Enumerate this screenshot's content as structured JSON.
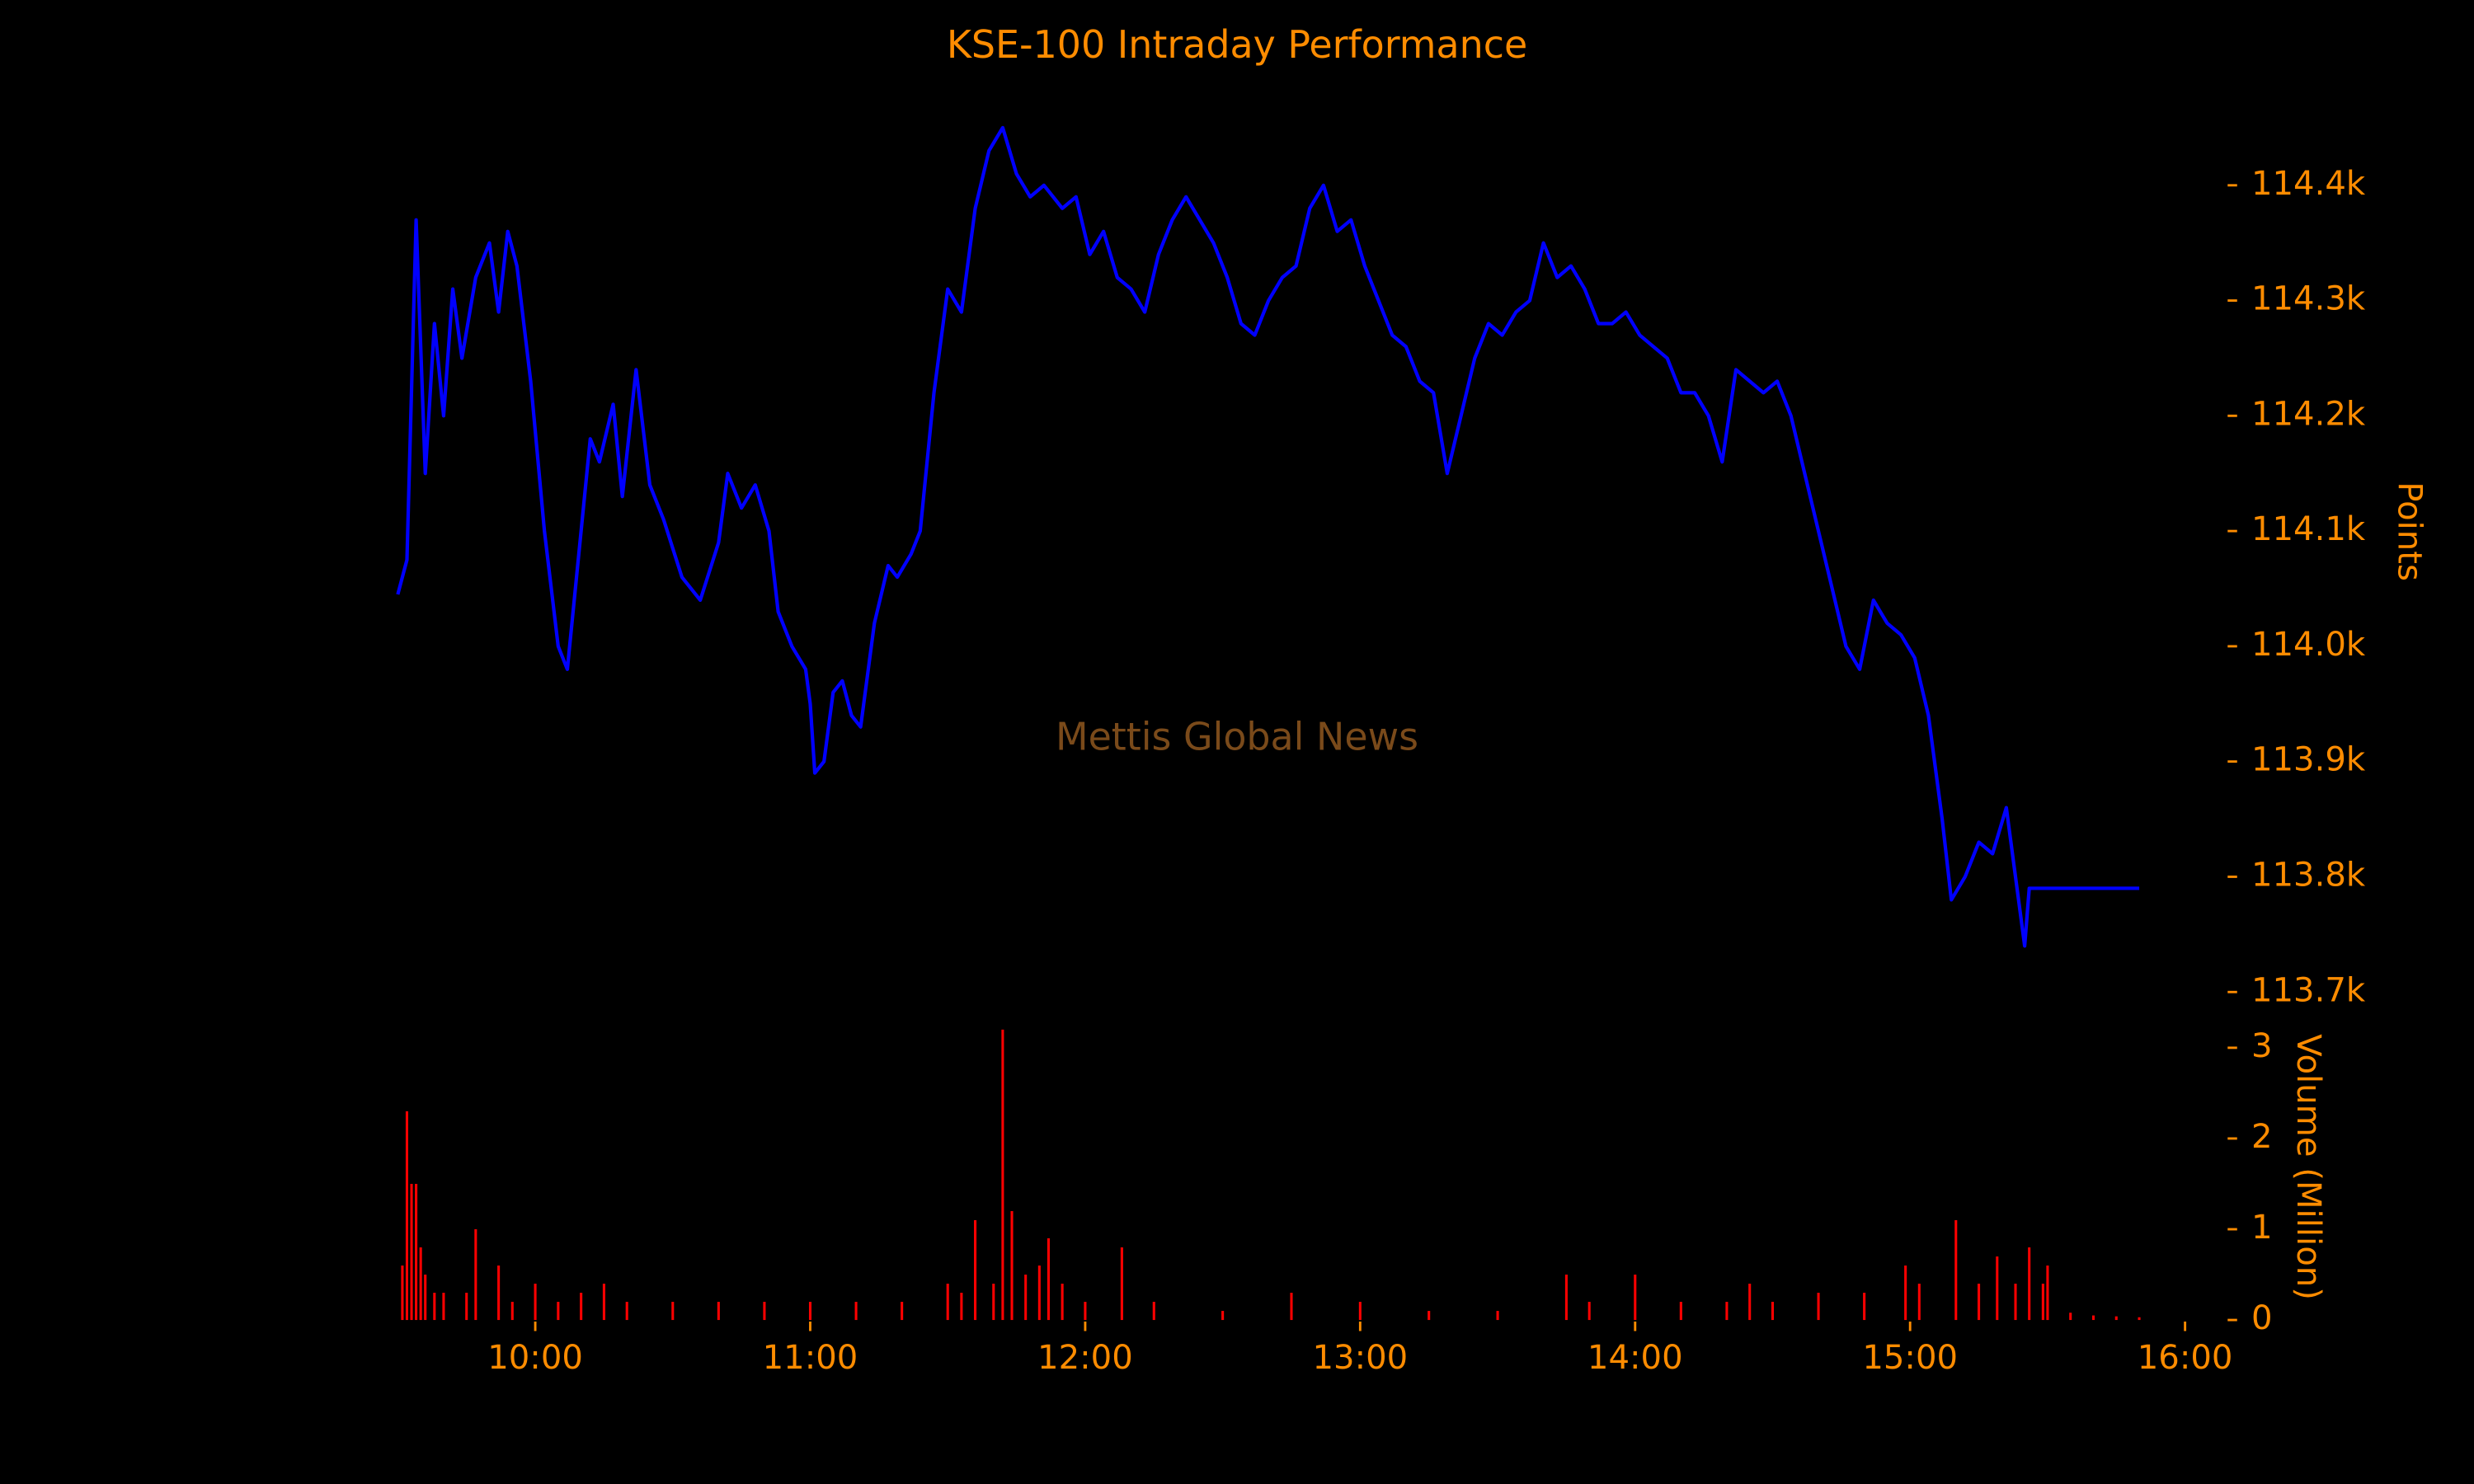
{
  "chart_data": [
    {
      "type": "line",
      "title": "KSE-100 Intraday Performance",
      "ylabel": "Points",
      "annotation": "Mettis Global News",
      "xlim": [
        "09:30",
        "16:00"
      ],
      "ylim": [
        113685,
        114465
      ],
      "yticks": [
        {
          "value": 113700,
          "label": "113.7k"
        },
        {
          "value": 113800,
          "label": "113.8k"
        },
        {
          "value": 113900,
          "label": "113.9k"
        },
        {
          "value": 114000,
          "label": "114.0k"
        },
        {
          "value": 114100,
          "label": "114.1k"
        },
        {
          "value": 114200,
          "label": "114.2k"
        },
        {
          "value": 114300,
          "label": "114.3k"
        },
        {
          "value": 114400,
          "label": "114.4k"
        }
      ],
      "x": [
        "09:30",
        "09:32",
        "09:34",
        "09:36",
        "09:38",
        "09:40",
        "09:42",
        "09:44",
        "09:47",
        "09:50",
        "09:52",
        "09:54",
        "09:56",
        "09:59",
        "10:02",
        "10:05",
        "10:07",
        "10:09",
        "10:12",
        "10:14",
        "10:17",
        "10:19",
        "10:22",
        "10:25",
        "10:28",
        "10:32",
        "10:36",
        "10:40",
        "10:42",
        "10:45",
        "10:48",
        "10:51",
        "10:53",
        "10:56",
        "10:59",
        "11:00",
        "11:01",
        "11:03",
        "11:05",
        "11:07",
        "11:09",
        "11:11",
        "11:14",
        "11:17",
        "11:19",
        "11:22",
        "11:24",
        "11:27",
        "11:30",
        "11:33",
        "11:36",
        "11:39",
        "11:42",
        "11:45",
        "11:48",
        "11:51",
        "11:55",
        "11:58",
        "12:01",
        "12:04",
        "12:07",
        "12:10",
        "12:13",
        "12:16",
        "12:19",
        "12:22",
        "12:25",
        "12:28",
        "12:31",
        "12:34",
        "12:37",
        "12:40",
        "12:43",
        "12:46",
        "12:49",
        "12:52",
        "12:55",
        "12:58",
        "13:01",
        "13:04",
        "13:07",
        "13:10",
        "13:13",
        "13:16",
        "13:19",
        "13:22",
        "13:25",
        "13:28",
        "13:31",
        "13:34",
        "13:37",
        "13:40",
        "13:43",
        "13:46",
        "13:49",
        "13:52",
        "13:55",
        "13:58",
        "14:01",
        "14:04",
        "14:07",
        "14:10",
        "14:13",
        "14:16",
        "14:19",
        "14:22",
        "14:25",
        "14:28",
        "14:31",
        "14:34",
        "14:37",
        "14:40",
        "14:43",
        "14:46",
        "14:49",
        "14:52",
        "14:55",
        "14:58",
        "15:01",
        "15:04",
        "15:07",
        "15:09",
        "15:12",
        "15:15",
        "15:18",
        "15:21",
        "15:23",
        "15:25",
        "15:26",
        "15:50"
      ],
      "series": [
        {
          "name": "KSE-100",
          "color": "#0000ff",
          "values": [
            114045,
            114075,
            114370,
            114150,
            114280,
            114200,
            114310,
            114250,
            114320,
            114350,
            114290,
            114360,
            114330,
            114230,
            114100,
            114000,
            113980,
            114060,
            114180,
            114160,
            114210,
            114130,
            114240,
            114140,
            114110,
            114060,
            114040,
            114090,
            114150,
            114120,
            114140,
            114100,
            114030,
            114000,
            113980,
            113950,
            113890,
            113900,
            113960,
            113970,
            113940,
            113930,
            114020,
            114070,
            114060,
            114080,
            114100,
            114220,
            114310,
            114290,
            114380,
            114430,
            114450,
            114410,
            114390,
            114400,
            114380,
            114390,
            114340,
            114360,
            114320,
            114310,
            114290,
            114340,
            114370,
            114390,
            114370,
            114350,
            114320,
            114280,
            114270,
            114300,
            114320,
            114330,
            114380,
            114400,
            114360,
            114370,
            114330,
            114300,
            114270,
            114260,
            114230,
            114220,
            114150,
            114200,
            114250,
            114280,
            114270,
            114290,
            114300,
            114350,
            114320,
            114330,
            114310,
            114280,
            114280,
            114290,
            114270,
            114260,
            114250,
            114220,
            114220,
            114200,
            114160,
            114240,
            114230,
            114220,
            114230,
            114200,
            114150,
            114100,
            114050,
            114000,
            113980,
            114040,
            114020,
            114010,
            113990,
            113940,
            113850,
            113780,
            113800,
            113830,
            113820,
            113860,
            113800,
            113740,
            113790,
            113790
          ]
        }
      ]
    },
    {
      "type": "bar",
      "ylabel": "Volume (Million)",
      "xlim": [
        "09:30",
        "16:00"
      ],
      "xticks": [
        "10:00",
        "11:00",
        "12:00",
        "13:00",
        "14:00",
        "15:00",
        "16:00"
      ],
      "ylim": [
        0,
        3.25
      ],
      "yticks": [
        0,
        1,
        2,
        3
      ],
      "x": [
        "09:31",
        "09:32",
        "09:33",
        "09:34",
        "09:35",
        "09:36",
        "09:38",
        "09:40",
        "09:45",
        "09:47",
        "09:52",
        "09:55",
        "10:00",
        "10:05",
        "10:10",
        "10:15",
        "10:20",
        "10:30",
        "10:40",
        "10:50",
        "11:00",
        "11:10",
        "11:20",
        "11:30",
        "11:33",
        "11:36",
        "11:40",
        "11:42",
        "11:44",
        "11:47",
        "11:50",
        "11:52",
        "11:55",
        "12:00",
        "12:08",
        "12:15",
        "12:30",
        "12:45",
        "13:00",
        "13:15",
        "13:30",
        "13:45",
        "13:50",
        "14:00",
        "14:10",
        "14:20",
        "14:25",
        "14:30",
        "14:40",
        "14:50",
        "14:59",
        "15:02",
        "15:10",
        "15:15",
        "15:19",
        "15:23",
        "15:26",
        "15:29",
        "15:30",
        "15:35",
        "15:40",
        "15:45",
        "15:50"
      ],
      "series": [
        {
          "name": "Volume",
          "color": "#ff0000",
          "values": [
            0.6,
            2.3,
            1.5,
            1.5,
            0.8,
            0.5,
            0.3,
            0.3,
            0.3,
            1.0,
            0.6,
            0.2,
            0.4,
            0.2,
            0.3,
            0.4,
            0.2,
            0.2,
            0.2,
            0.2,
            0.2,
            0.2,
            0.2,
            0.4,
            0.3,
            1.1,
            0.4,
            3.2,
            1.2,
            0.5,
            0.6,
            0.9,
            0.4,
            0.2,
            0.8,
            0.2,
            0.1,
            0.3,
            0.2,
            0.1,
            0.1,
            0.5,
            0.2,
            0.5,
            0.2,
            0.2,
            0.4,
            0.2,
            0.3,
            0.3,
            0.6,
            0.4,
            1.1,
            0.4,
            0.7,
            0.4,
            0.8,
            0.4,
            0.6,
            0.08,
            0.05,
            0.04,
            0.03
          ]
        }
      ]
    }
  ]
}
